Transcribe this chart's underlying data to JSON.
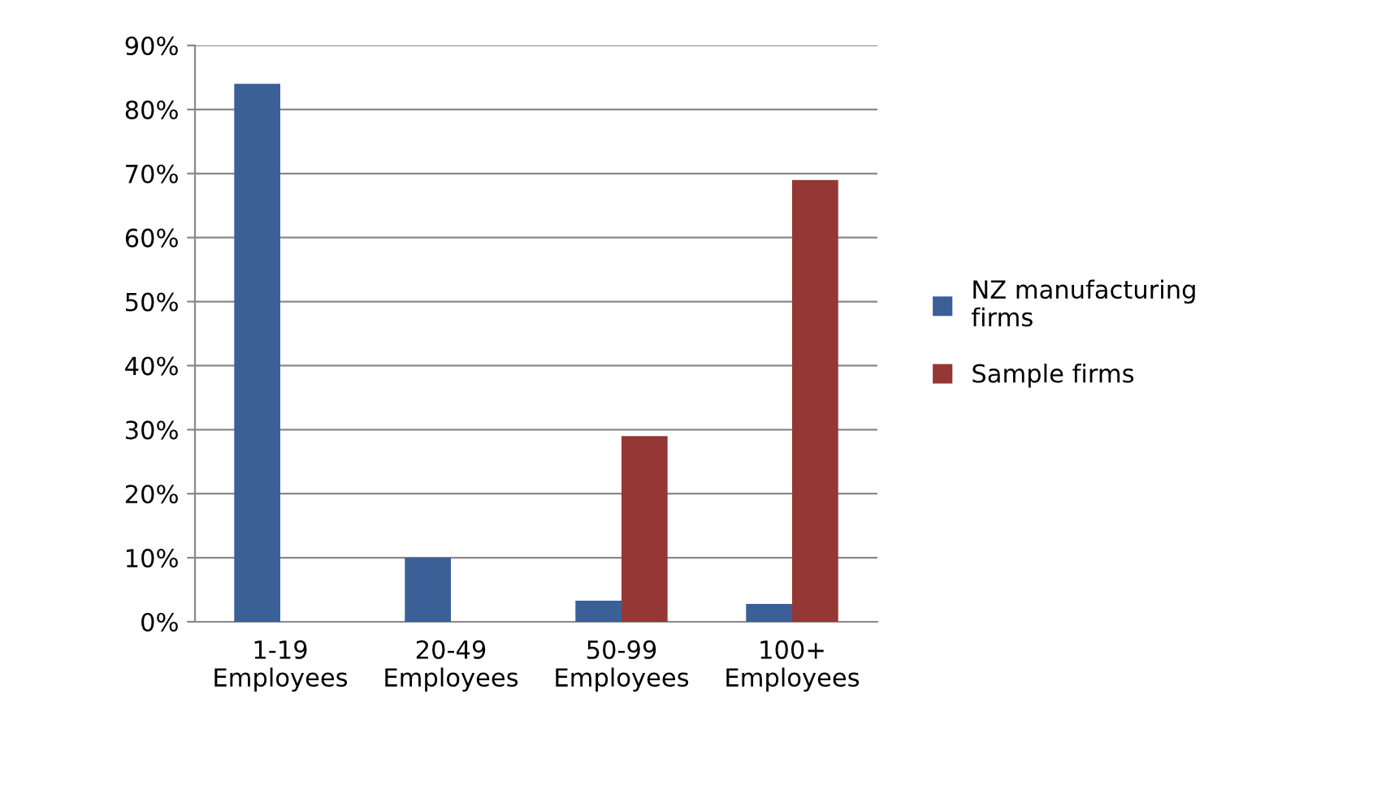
{
  "chart_data": {
    "type": "bar",
    "categories": [
      "1-19\nEmployees",
      "20-49\nEmployees",
      "50-99\nEmployees",
      "100+\nEmployees"
    ],
    "series": [
      {
        "name": "NZ manufacturing\nfirms",
        "color": "#3b6098",
        "values": [
          84,
          10,
          3.3,
          2.8
        ]
      },
      {
        "name": "Sample firms",
        "color": "#953735",
        "values": [
          0,
          0,
          29,
          69
        ]
      }
    ],
    "ylim": [
      0,
      90
    ],
    "yticks": [
      {
        "value": 0,
        "label": "0%"
      },
      {
        "value": 10,
        "label": "10%"
      },
      {
        "value": 20,
        "label": "20%"
      },
      {
        "value": 30,
        "label": "30%"
      },
      {
        "value": 40,
        "label": "40%"
      },
      {
        "value": 50,
        "label": "50%"
      },
      {
        "value": 60,
        "label": "60%"
      },
      {
        "value": 70,
        "label": "70%"
      },
      {
        "value": 80,
        "label": "80%"
      },
      {
        "value": 90,
        "label": "90%"
      }
    ],
    "grid": "y",
    "legend": "right"
  }
}
